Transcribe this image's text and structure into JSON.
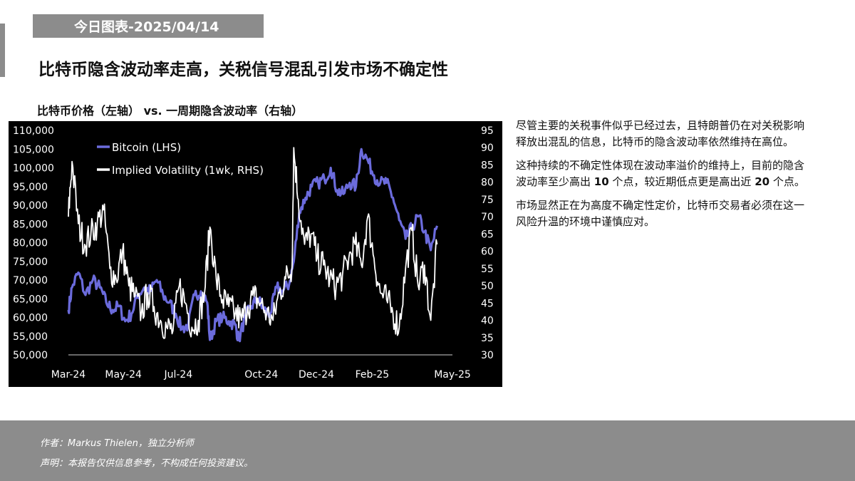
{
  "header": {
    "date_banner": "今日图表-2025/04/14",
    "title": "比特币隐含波动率走高，关税信号混乱引发市场不确定性"
  },
  "chart_heading": "比特币价格（左轴） vs. 一周期隐含波动率（右轴）",
  "commentary": {
    "p1": "尽管主要的关税事件似乎已经过去，且特朗普仍在对关税影响释放出混乱的信息，比特币的隐含波动率依然维持在高位。",
    "p2_a": "这种持续的不确定性体现在波动率溢价的维持上，目前的隐含波动率至少高出 ",
    "p2_b": "10",
    "p2_c": " 个点，较近期低点更是高出近 ",
    "p2_d": "20",
    "p2_e": " 个点。",
    "p3": "市场显然正在为高度不确定性定价，比特币交易者必须在这一风险升温的环境中谨慎应对。"
  },
  "footer": {
    "author": "作者：Markus Thielen，独立分析师",
    "disclaimer": "声明：本报告仅供信息参考，不构成任何投资建议。"
  },
  "chart_data": {
    "type": "line",
    "title": "比特币价格（左轴） vs. 一周期隐含波动率（右轴）",
    "x_tick_labels": [
      "Mar-24",
      "May-24",
      "Jul-24",
      "Oct-24",
      "Dec-24",
      "Feb-25",
      "May-25"
    ],
    "x_tick_dates": [
      "2024-03-01",
      "2024-05-01",
      "2024-07-01",
      "2024-10-01",
      "2024-12-01",
      "2025-02-01",
      "2025-05-01"
    ],
    "x_range": [
      "2024-03-01",
      "2025-05-01"
    ],
    "y_left": {
      "label": "",
      "range": [
        50000,
        110000
      ],
      "ticks": [
        "50,000",
        "55,000",
        "60,000",
        "65,000",
        "70,000",
        "75,000",
        "80,000",
        "85,000",
        "90,000",
        "95,000",
        "100,000",
        "105,000",
        "110,000"
      ]
    },
    "y_right": {
      "label": "",
      "range": [
        30,
        95
      ],
      "ticks": [
        "30",
        "35",
        "40",
        "45",
        "50",
        "55",
        "60",
        "65",
        "70",
        "75",
        "80",
        "85",
        "90",
        "95"
      ]
    },
    "background_color": "#000000",
    "legend_position": "top-left",
    "series": [
      {
        "name": "Bitcoin (LHS)",
        "axis": "left",
        "color": "#6b6bdc",
        "x": [
          "2024-03-01",
          "2024-03-05",
          "2024-03-12",
          "2024-03-20",
          "2024-03-28",
          "2024-04-05",
          "2024-04-12",
          "2024-04-19",
          "2024-04-26",
          "2024-05-03",
          "2024-05-10",
          "2024-05-17",
          "2024-05-24",
          "2024-05-31",
          "2024-06-07",
          "2024-06-14",
          "2024-06-21",
          "2024-06-28",
          "2024-07-05",
          "2024-07-12",
          "2024-07-19",
          "2024-07-26",
          "2024-08-02",
          "2024-08-05",
          "2024-08-12",
          "2024-08-19",
          "2024-08-26",
          "2024-09-02",
          "2024-09-06",
          "2024-09-13",
          "2024-09-20",
          "2024-09-27",
          "2024-10-04",
          "2024-10-11",
          "2024-10-18",
          "2024-10-25",
          "2024-11-01",
          "2024-11-06",
          "2024-11-12",
          "2024-11-19",
          "2024-11-26",
          "2024-12-03",
          "2024-12-10",
          "2024-12-17",
          "2024-12-24",
          "2024-12-31",
          "2025-01-07",
          "2025-01-14",
          "2025-01-20",
          "2025-01-27",
          "2025-02-03",
          "2025-02-10",
          "2025-02-17",
          "2025-02-24",
          "2025-03-03",
          "2025-03-10",
          "2025-03-17",
          "2025-03-24",
          "2025-03-31",
          "2025-04-07",
          "2025-04-14"
        ],
        "values": [
          62000,
          68000,
          72000,
          66000,
          70000,
          68000,
          64000,
          62000,
          63000,
          59000,
          61000,
          66000,
          68000,
          67000,
          70000,
          66000,
          64000,
          61000,
          57000,
          58000,
          66000,
          67000,
          64000,
          54000,
          59000,
          60000,
          59000,
          58000,
          54000,
          60000,
          63000,
          65000,
          62000,
          61000,
          68000,
          67000,
          69000,
          75000,
          88000,
          92000,
          95000,
          96000,
          97000,
          100000,
          94000,
          93000,
          96000,
          95000,
          105000,
          102000,
          98000,
          96000,
          96000,
          92000,
          86000,
          81000,
          84000,
          87000,
          83000,
          78000,
          84500
        ]
      },
      {
        "name": "Implied Volatility (1wk, RHS)",
        "axis": "right",
        "color": "#ffffff",
        "x": [
          "2024-03-01",
          "2024-03-05",
          "2024-03-12",
          "2024-03-19",
          "2024-03-26",
          "2024-04-02",
          "2024-04-09",
          "2024-04-16",
          "2024-04-23",
          "2024-04-30",
          "2024-05-07",
          "2024-05-14",
          "2024-05-21",
          "2024-05-28",
          "2024-06-04",
          "2024-06-11",
          "2024-06-18",
          "2024-06-25",
          "2024-07-02",
          "2024-07-09",
          "2024-07-16",
          "2024-07-23",
          "2024-07-30",
          "2024-08-05",
          "2024-08-12",
          "2024-08-19",
          "2024-08-26",
          "2024-09-02",
          "2024-09-09",
          "2024-09-16",
          "2024-09-23",
          "2024-09-30",
          "2024-10-07",
          "2024-10-14",
          "2024-10-21",
          "2024-10-28",
          "2024-11-04",
          "2024-11-06",
          "2024-11-11",
          "2024-11-18",
          "2024-11-25",
          "2024-12-02",
          "2024-12-09",
          "2024-12-16",
          "2024-12-23",
          "2024-12-30",
          "2025-01-06",
          "2025-01-13",
          "2025-01-20",
          "2025-01-27",
          "2025-02-03",
          "2025-02-10",
          "2025-02-17",
          "2025-02-24",
          "2025-03-03",
          "2025-03-10",
          "2025-03-17",
          "2025-03-24",
          "2025-03-31",
          "2025-04-07",
          "2025-04-14"
        ],
        "values": [
          70,
          86,
          68,
          62,
          65,
          68,
          72,
          55,
          52,
          60,
          50,
          47,
          42,
          48,
          44,
          40,
          38,
          37,
          50,
          45,
          38,
          40,
          48,
          67,
          52,
          46,
          44,
          42,
          40,
          44,
          47,
          45,
          42,
          40,
          48,
          52,
          55,
          90,
          75,
          62,
          65,
          58,
          56,
          52,
          50,
          53,
          58,
          62,
          56,
          70,
          58,
          48,
          46,
          42,
          38,
          55,
          66,
          50,
          56,
          40,
          62
        ]
      }
    ]
  }
}
